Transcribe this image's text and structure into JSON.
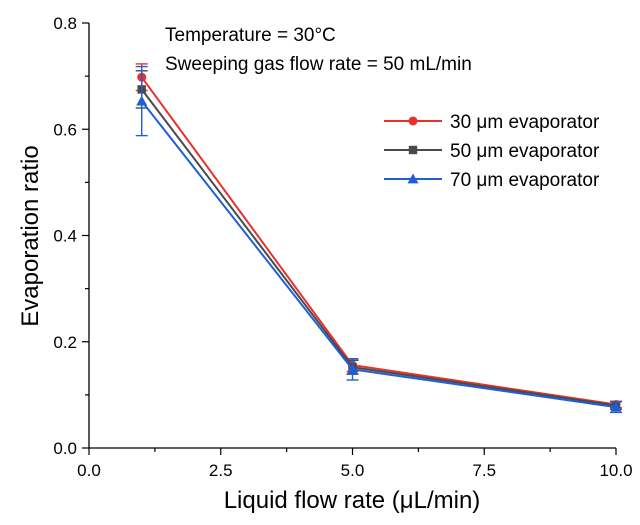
{
  "chart_data": {
    "type": "line",
    "xlabel": "Liquid flow rate (μL/min)",
    "ylabel": "Evaporation ratio",
    "xlim": [
      0,
      10
    ],
    "ylim": [
      0,
      0.8
    ],
    "x_ticks": [
      "0.0",
      "2.5",
      "5.0",
      "7.5",
      "10.0"
    ],
    "y_ticks": [
      "0.0",
      "0.2",
      "0.4",
      "0.6",
      "0.8"
    ],
    "annotations": [
      "Temperature = 30°C",
      "Sweeping gas flow rate = 50 mL/min"
    ],
    "legend_position": "right",
    "x": [
      1,
      5,
      10
    ],
    "series": [
      {
        "name": "30 μm evaporator",
        "color": "#e8302e",
        "marker": "circle",
        "values": [
          0.698,
          0.156,
          0.082
        ],
        "errors": [
          0.025,
          0.012,
          0.006
        ]
      },
      {
        "name": "50 μm evaporator",
        "color": "#4a4a4a",
        "marker": "square",
        "values": [
          0.675,
          0.152,
          0.08
        ],
        "errors": [
          0.035,
          0.013,
          0.007
        ]
      },
      {
        "name": "70 μm evaporator",
        "color": "#1f5fd6",
        "marker": "triangle",
        "values": [
          0.653,
          0.148,
          0.077
        ],
        "errors": [
          0.065,
          0.02,
          0.01
        ]
      }
    ]
  }
}
